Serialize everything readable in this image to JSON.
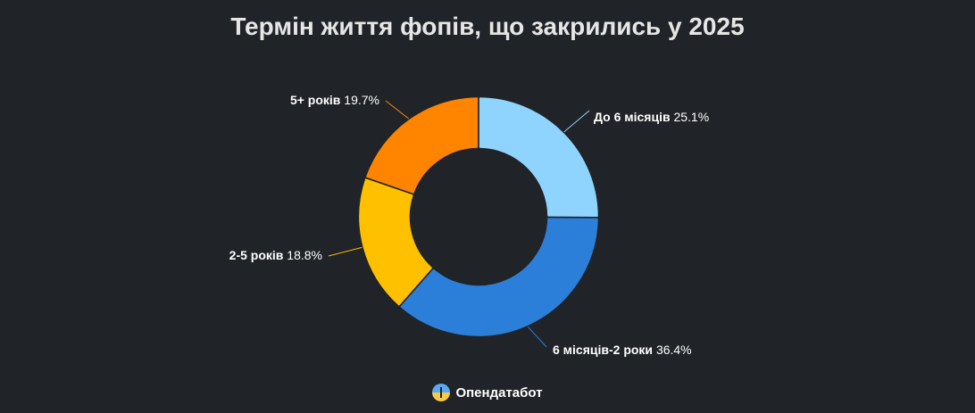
{
  "title": "Термін життя фопів, що закрились у 2025",
  "footer": {
    "brand": "Опендатабот",
    "logo_icon": "opendatabot-logo-icon"
  },
  "chart_data": {
    "type": "pie",
    "donut": true,
    "title": "Термін життя фопів, що закрились у 2025",
    "slices": [
      {
        "label": "До 6 місяців",
        "value": 25.1,
        "display": "25.1%",
        "color": "#8fd4ff"
      },
      {
        "label": "6 місяців-2 роки",
        "value": 36.4,
        "display": "36.4%",
        "color": "#2c7fd9"
      },
      {
        "label": "2-5 років",
        "value": 18.8,
        "display": "18.8%",
        "color": "#ffc000"
      },
      {
        "label": "5+ років",
        "value": 19.7,
        "display": "19.7%",
        "color": "#ff8400"
      }
    ],
    "legend": "none",
    "labels": "outside-with-leader-lines"
  }
}
